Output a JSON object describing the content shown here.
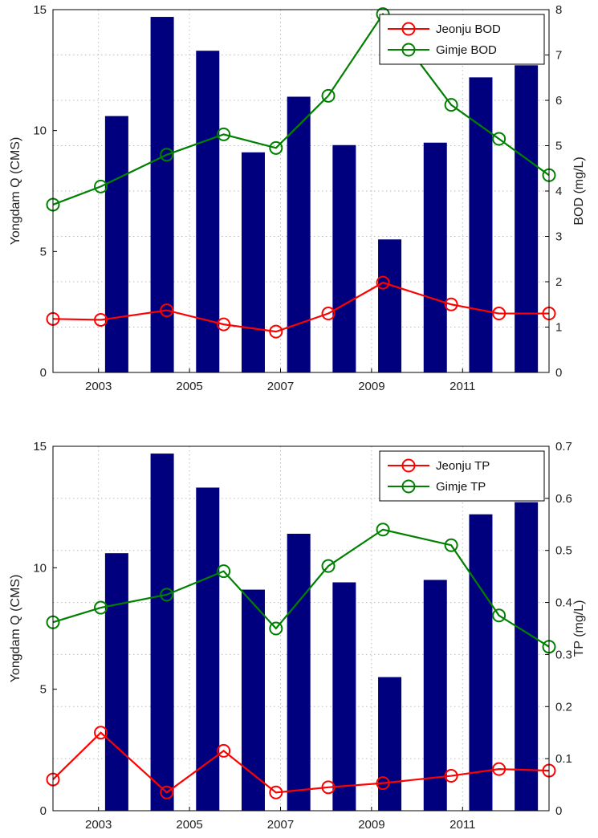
{
  "chart_data": [
    {
      "type": "bar",
      "x_ticks": [
        "2003",
        "2005",
        "2007",
        "2009",
        "2011"
      ],
      "bar_values": [
        10.6,
        14.7,
        13.3,
        9.1,
        11.4,
        9.4,
        5.5,
        9.5,
        12.2,
        12.7
      ],
      "bar_color": "#00007f",
      "ylabel_left": "Yongdam Q (CMS)",
      "ylim_left": [
        0,
        15
      ],
      "yticks_left": [
        "0",
        "5",
        "10",
        "15"
      ],
      "ylabel_right": "BOD (mg/L)",
      "ylim_right": [
        0,
        8
      ],
      "yticks_right": [
        "0",
        "1",
        "2",
        "3",
        "4",
        "5",
        "6",
        "7",
        "8"
      ],
      "grid": true,
      "legend_position": "top-right",
      "series": [
        {
          "name": "Jeonju BOD",
          "color": "#ff0000",
          "values": [
            1.18,
            1.16,
            1.37,
            1.06,
            0.9,
            1.3,
            1.98,
            1.5,
            1.3,
            1.3
          ]
        },
        {
          "name": "Gimje BOD",
          "color": "#008000",
          "values": [
            3.7,
            4.1,
            4.8,
            5.25,
            4.95,
            6.1,
            7.9,
            5.9,
            5.15,
            4.35
          ]
        }
      ]
    },
    {
      "type": "bar",
      "x_ticks": [
        "2003",
        "2005",
        "2007",
        "2009",
        "2011"
      ],
      "bar_values": [
        10.6,
        14.7,
        13.3,
        9.1,
        11.4,
        9.4,
        5.5,
        9.5,
        12.2,
        12.7
      ],
      "bar_color": "#00007f",
      "ylabel_left": "Yongdam Q (CMS)",
      "ylim_left": [
        0,
        15
      ],
      "yticks_left": [
        "0",
        "5",
        "10",
        "15"
      ],
      "ylabel_right": "TP (mg/L)",
      "ylim_right": [
        0,
        0.7
      ],
      "yticks_right": [
        "0",
        "0.1",
        "0.2",
        "0.3",
        "0.4",
        "0.5",
        "0.6",
        "0.7"
      ],
      "grid": true,
      "legend_position": "top-right",
      "series": [
        {
          "name": "Jeonju TP",
          "color": "#ff0000",
          "values": [
            0.06,
            0.15,
            0.035,
            0.115,
            0.035,
            0.045,
            0.053,
            0.067,
            0.08,
            0.077
          ]
        },
        {
          "name": "Gimje TP",
          "color": "#008000",
          "values": [
            0.362,
            0.39,
            0.415,
            0.46,
            0.35,
            0.47,
            0.54,
            0.51,
            0.375,
            0.315
          ]
        }
      ]
    }
  ]
}
